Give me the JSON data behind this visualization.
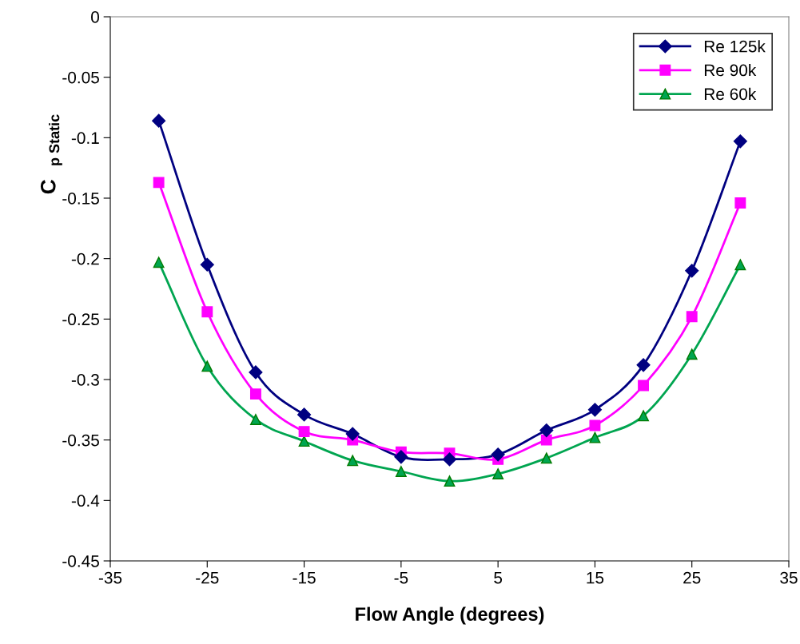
{
  "chart_data": {
    "type": "line",
    "xlabel": "Flow Angle (degrees)",
    "ylabel": "C$_{p Static}$",
    "x": [
      -30,
      -25,
      -20,
      -15,
      -10,
      -5,
      0,
      5,
      10,
      15,
      20,
      25,
      30
    ],
    "series": [
      {
        "name": "Re 125k",
        "color": "#000080",
        "marker": "diamond",
        "values": [
          -0.086,
          -0.205,
          -0.294,
          -0.329,
          -0.345,
          -0.364,
          -0.366,
          -0.362,
          -0.342,
          -0.325,
          -0.288,
          -0.21,
          -0.103
        ]
      },
      {
        "name": "Re 90k",
        "color": "#ff00ff",
        "marker": "square",
        "values": [
          -0.137,
          -0.244,
          -0.312,
          -0.343,
          -0.35,
          -0.36,
          -0.361,
          -0.366,
          -0.35,
          -0.338,
          -0.305,
          -0.248,
          -0.154
        ]
      },
      {
        "name": "Re 60k",
        "color": "#00a550",
        "marker": "triangle",
        "values": [
          -0.203,
          -0.289,
          -0.333,
          -0.351,
          -0.367,
          -0.376,
          -0.384,
          -0.378,
          -0.365,
          -0.348,
          -0.33,
          -0.279,
          -0.205
        ]
      }
    ],
    "xlim": [
      -35,
      35
    ],
    "xticks": [
      -35,
      -25,
      -15,
      -5,
      5,
      15,
      25,
      35
    ],
    "ylim": [
      -0.45,
      0
    ],
    "yticks": [
      -0.45,
      -0.4,
      -0.35,
      -0.3,
      -0.25,
      -0.2,
      -0.15,
      -0.1,
      -0.05,
      0
    ],
    "grid": false,
    "legend": "top right",
    "line_style": "solid"
  }
}
